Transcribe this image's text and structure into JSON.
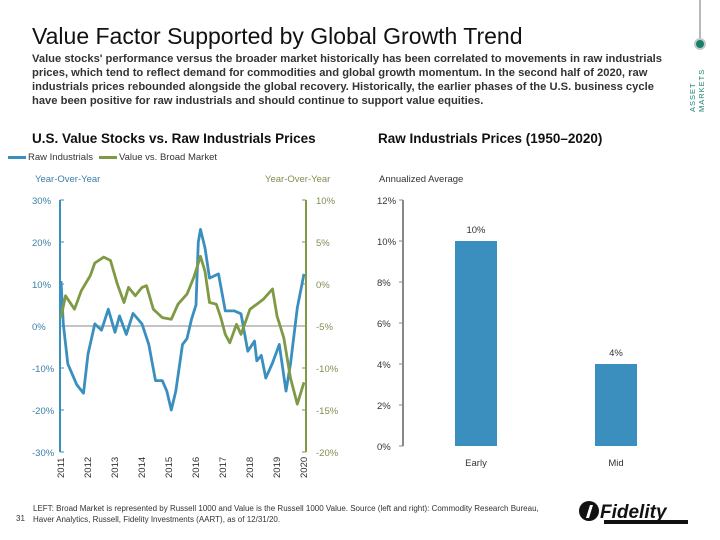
{
  "header": {
    "title": "Value Factor Supported by Global Growth Trend",
    "intro": "Value stocks' performance versus the broader market historically has been correlated to movements in raw industrials prices, which tend to reflect demand for commodities and global growth momentum. In the second half of 2020, raw industrials prices rebounded alongside the global recovery. Historically, the earlier phases of the U.S. business cycle have been positive for raw industrials and should continue to support value equities.",
    "tag_line1": "ASSET",
    "tag_line2": "MARKETS"
  },
  "colors": {
    "blue": "#3a8fbf",
    "green": "#7f9a45",
    "accent": "#17806d"
  },
  "chart_data": [
    {
      "type": "line",
      "title": "U.S. Value Stocks vs. Raw Industrials Prices",
      "legend_placement": "top-left",
      "ylabel_left": "Year-Over-Year",
      "ylabel_right": "Year-Over-Year",
      "ylim_left": [
        -30,
        30
      ],
      "ylim_right": [
        -20,
        10
      ],
      "yticks_left": [
        "30%",
        "20%",
        "10%",
        "0%",
        "-10%",
        "-20%",
        "-30%"
      ],
      "yticks_right": [
        "10%",
        "5%",
        "0%",
        "-5%",
        "-10%",
        "-15%",
        "-20%"
      ],
      "xticks": [
        "2011",
        "2012",
        "2013",
        "2014",
        "2015",
        "2016",
        "2017",
        "2018",
        "2019",
        "2020"
      ],
      "series": [
        {
          "name": "Raw Industrials",
          "axis": "left",
          "color": "#3a8fbf",
          "points": [
            [
              "2011-01",
              10.7
            ],
            [
              "2011-02",
              0.5
            ],
            [
              "2011-04",
              -9
            ],
            [
              "2011-08",
              -14
            ],
            [
              "2011-11",
              -16
            ],
            [
              "2012-01",
              -6.7
            ],
            [
              "2012-04",
              0.5
            ],
            [
              "2012-07",
              -1
            ],
            [
              "2012-10",
              4
            ],
            [
              "2013-01",
              -1.5
            ],
            [
              "2013-03",
              2.4
            ],
            [
              "2013-06",
              -2
            ],
            [
              "2013-09",
              3
            ],
            [
              "2014-01",
              0.5
            ],
            [
              "2014-04",
              -4.4
            ],
            [
              "2014-07",
              -13
            ],
            [
              "2014-10",
              -13
            ],
            [
              "2014-12",
              -15.5
            ],
            [
              "2015-02",
              -20
            ],
            [
              "2015-04",
              -15.5
            ],
            [
              "2015-07",
              -4.4
            ],
            [
              "2015-09",
              -3
            ],
            [
              "2015-11",
              1.6
            ],
            [
              "2016-01",
              5
            ],
            [
              "2016-02",
              20
            ],
            [
              "2016-03",
              23
            ],
            [
              "2016-05",
              18.6
            ],
            [
              "2016-07",
              11.4
            ],
            [
              "2016-11",
              12.4
            ],
            [
              "2017-02",
              3.6
            ],
            [
              "2017-06",
              3.6
            ],
            [
              "2017-09",
              2.9
            ],
            [
              "2017-12",
              -6
            ],
            [
              "2018-03",
              -3.6
            ],
            [
              "2018-04",
              -8.3
            ],
            [
              "2018-06",
              -7
            ],
            [
              "2018-08",
              -12.4
            ],
            [
              "2018-11",
              -8.8
            ],
            [
              "2019-02",
              -4.4
            ],
            [
              "2019-05",
              -15.5
            ],
            [
              "2019-07",
              -9
            ],
            [
              "2019-10",
              4.3
            ],
            [
              "2020-01",
              12.4
            ]
          ]
        },
        {
          "name": "Value vs. Broad Market",
          "axis": "right",
          "color": "#7f9a45",
          "points": [
            [
              "2011-01",
              -4.0
            ],
            [
              "2011-03",
              -1.4
            ],
            [
              "2011-07",
              -3.0
            ],
            [
              "2011-10",
              -0.8
            ],
            [
              "2012-02",
              1.0
            ],
            [
              "2012-04",
              2.5
            ],
            [
              "2012-08",
              3.2
            ],
            [
              "2012-11",
              2.8
            ],
            [
              "2013-02",
              0
            ],
            [
              "2013-05",
              -2.2
            ],
            [
              "2013-07",
              -0.4
            ],
            [
              "2013-10",
              -1.4
            ],
            [
              "2014-01",
              -0.4
            ],
            [
              "2014-03",
              -0.2
            ],
            [
              "2014-06",
              -3.0
            ],
            [
              "2014-10",
              -4.0
            ],
            [
              "2015-02",
              -4.2
            ],
            [
              "2015-05",
              -2.4
            ],
            [
              "2015-09",
              -1.2
            ],
            [
              "2015-12",
              0.8
            ],
            [
              "2016-03",
              3.3
            ],
            [
              "2016-05",
              1.5
            ],
            [
              "2016-07",
              -2.2
            ],
            [
              "2016-10",
              -2.4
            ],
            [
              "2016-12",
              -4.0
            ],
            [
              "2017-02",
              -6.0
            ],
            [
              "2017-04",
              -7.0
            ],
            [
              "2017-07",
              -4.8
            ],
            [
              "2017-09",
              -6.0
            ],
            [
              "2018-01",
              -3.0
            ],
            [
              "2018-04",
              -2.4
            ],
            [
              "2018-07",
              -1.8
            ],
            [
              "2018-11",
              -0.6
            ],
            [
              "2019-01",
              -3.8
            ],
            [
              "2019-04",
              -6.4
            ],
            [
              "2019-07",
              -11.2
            ],
            [
              "2019-10",
              -14.3
            ],
            [
              "2020-01",
              -11.7
            ]
          ]
        }
      ]
    },
    {
      "type": "bar",
      "title": "Raw Industrials Prices (1950–2020)",
      "ylabel": "Annualized Average",
      "ylim": [
        0,
        12
      ],
      "yticks": [
        "12%",
        "10%",
        "8%",
        "6%",
        "4%",
        "2%",
        "0%"
      ],
      "categories": [
        "Early",
        "Mid"
      ],
      "values": [
        10,
        4
      ],
      "data_labels": [
        "10%",
        "4%"
      ],
      "color": "#3a8fbf"
    }
  ],
  "footer": {
    "page": "31",
    "note_line1": "LEFT: Broad Market is represented by Russell 1000 and Value is the Russell 1000 Value. Source (left and right): Commodity Research Bureau,",
    "note_line2": "Haver Analytics, Russell, Fidelity Investments (AART), as of 12/31/20.",
    "logo": "Fidelity INVESTMENTS"
  }
}
